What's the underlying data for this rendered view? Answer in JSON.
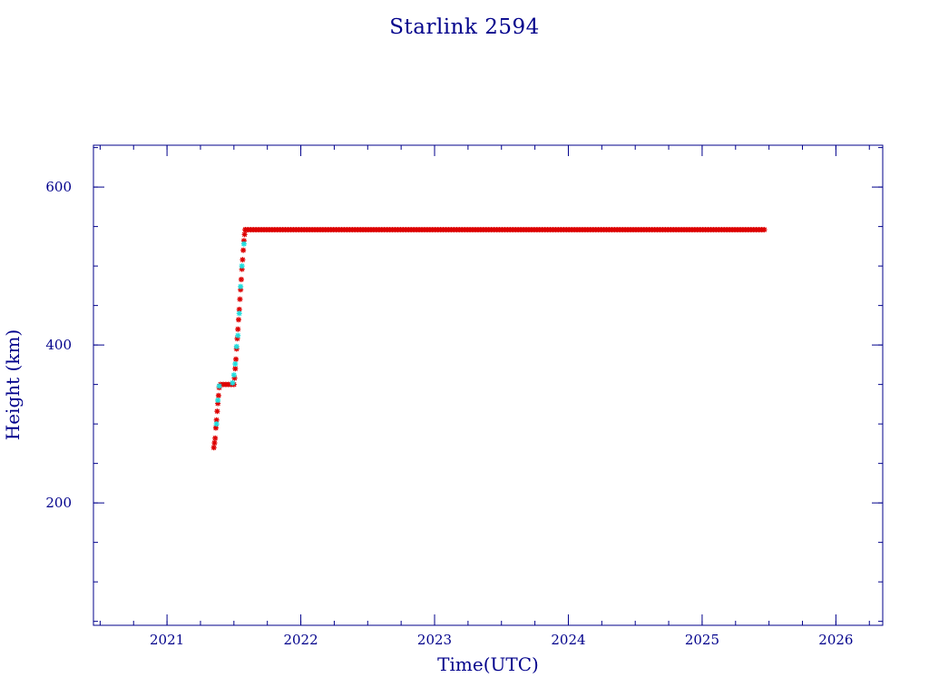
{
  "chart_data": {
    "type": "scatter",
    "title": "Starlink 2594",
    "xlabel": "Time(UTC)",
    "ylabel": "Height (km)",
    "xlim": [
      2020.45,
      2026.35
    ],
    "ylim": [
      45,
      653
    ],
    "x_ticks": [
      2021,
      2022,
      2023,
      2024,
      2025,
      2026
    ],
    "y_ticks": [
      200,
      400,
      600
    ],
    "x_minor_step": 0.25,
    "y_minor_step": 50,
    "grid": false,
    "legend": "none",
    "colors": {
      "axis": "#00008b",
      "series_main": "#dd0000",
      "series_alt": "#22dddd"
    },
    "series": [
      {
        "color": "#dd0000",
        "points": [
          [
            2021.35,
            270
          ],
          [
            2021.355,
            276
          ],
          [
            2021.36,
            282
          ],
          [
            2021.365,
            295
          ],
          [
            2021.37,
            305
          ],
          [
            2021.375,
            316
          ],
          [
            2021.38,
            326
          ],
          [
            2021.385,
            336
          ],
          [
            2021.39,
            346
          ],
          [
            2021.4,
            350
          ],
          [
            2021.42,
            350
          ],
          [
            2021.44,
            350
          ],
          [
            2021.46,
            350
          ],
          [
            2021.48,
            350
          ],
          [
            2021.5,
            350
          ],
          [
            2021.505,
            358
          ],
          [
            2021.51,
            370
          ],
          [
            2021.515,
            382
          ],
          [
            2021.52,
            395
          ],
          [
            2021.525,
            408
          ],
          [
            2021.53,
            420
          ],
          [
            2021.535,
            432
          ],
          [
            2021.54,
            445
          ],
          [
            2021.545,
            458
          ],
          [
            2021.55,
            470
          ],
          [
            2021.555,
            483
          ],
          [
            2021.56,
            496
          ],
          [
            2021.565,
            508
          ],
          [
            2021.57,
            520
          ],
          [
            2021.575,
            532
          ],
          [
            2021.58,
            540
          ],
          [
            2021.585,
            546
          ]
        ],
        "plateau": {
          "x_start": 2021.585,
          "x_end": 2025.47,
          "y": 546
        }
      },
      {
        "color": "#22dddd",
        "points": [
          [
            2021.37,
            300
          ],
          [
            2021.38,
            330
          ],
          [
            2021.39,
            348
          ],
          [
            2021.49,
            352
          ],
          [
            2021.5,
            362
          ],
          [
            2021.51,
            376
          ],
          [
            2021.52,
            398
          ],
          [
            2021.53,
            412
          ],
          [
            2021.54,
            440
          ],
          [
            2021.55,
            474
          ],
          [
            2021.56,
            500
          ],
          [
            2021.575,
            528
          ]
        ]
      }
    ]
  }
}
